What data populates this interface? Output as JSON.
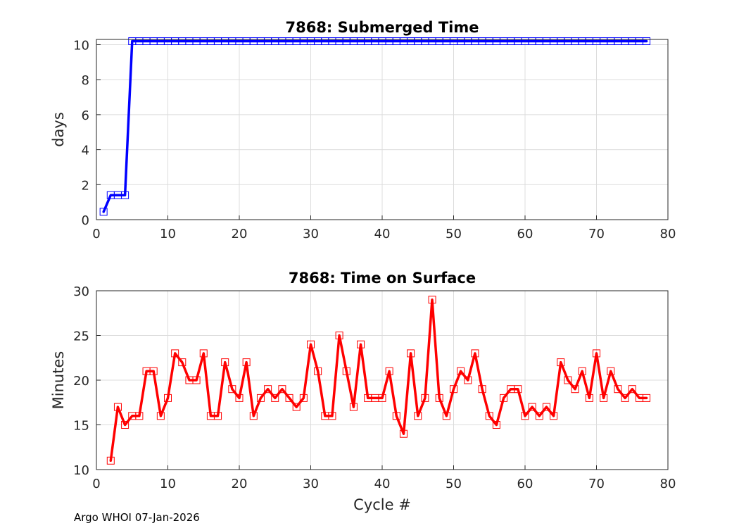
{
  "footer": "Argo WHOI 07-Jan-2026",
  "chart_data": [
    {
      "type": "line",
      "title": "7868: Submerged Time",
      "xlabel": "",
      "ylabel": "days",
      "xlim": [
        0,
        80
      ],
      "ylim": [
        0,
        10.3
      ],
      "xticks": [
        0,
        10,
        20,
        30,
        40,
        50,
        60,
        70,
        80
      ],
      "yticks": [
        0,
        2,
        4,
        6,
        8,
        10
      ],
      "grid": true,
      "color": "#0000ff",
      "marker": "square",
      "x": [
        1,
        2,
        3,
        4,
        5,
        6,
        7,
        8,
        9,
        10,
        11,
        12,
        13,
        14,
        15,
        16,
        17,
        18,
        19,
        20,
        21,
        22,
        23,
        24,
        25,
        26,
        27,
        28,
        29,
        30,
        31,
        32,
        33,
        34,
        35,
        36,
        37,
        38,
        39,
        40,
        41,
        42,
        43,
        44,
        45,
        46,
        47,
        48,
        49,
        50,
        51,
        52,
        53,
        54,
        55,
        56,
        57,
        58,
        59,
        60,
        61,
        62,
        63,
        64,
        65,
        66,
        67,
        68,
        69,
        70,
        71,
        72,
        73,
        74,
        75,
        76,
        77
      ],
      "y": [
        0.45,
        1.4,
        1.4,
        1.4,
        10.2,
        10.2,
        10.2,
        10.2,
        10.2,
        10.2,
        10.2,
        10.2,
        10.2,
        10.2,
        10.2,
        10.2,
        10.2,
        10.2,
        10.2,
        10.2,
        10.2,
        10.2,
        10.2,
        10.2,
        10.2,
        10.2,
        10.2,
        10.2,
        10.2,
        10.2,
        10.2,
        10.2,
        10.2,
        10.2,
        10.2,
        10.2,
        10.2,
        10.2,
        10.2,
        10.2,
        10.2,
        10.2,
        10.2,
        10.2,
        10.2,
        10.2,
        10.2,
        10.2,
        10.2,
        10.2,
        10.2,
        10.2,
        10.2,
        10.2,
        10.2,
        10.2,
        10.2,
        10.2,
        10.2,
        10.2,
        10.2,
        10.2,
        10.2,
        10.2,
        10.2,
        10.2,
        10.2,
        10.2,
        10.2,
        10.2,
        10.2,
        10.2,
        10.2,
        10.2,
        10.2,
        10.2,
        10.2
      ]
    },
    {
      "type": "line",
      "title": "7868: Time on Surface",
      "xlabel": "Cycle #",
      "ylabel": "Minutes",
      "xlim": [
        0,
        80
      ],
      "ylim": [
        10,
        30
      ],
      "xticks": [
        0,
        10,
        20,
        30,
        40,
        50,
        60,
        70,
        80
      ],
      "yticks": [
        10,
        15,
        20,
        25,
        30
      ],
      "grid": true,
      "color": "#ff0000",
      "marker": "square",
      "x": [
        2,
        3,
        4,
        5,
        6,
        7,
        8,
        9,
        10,
        11,
        12,
        13,
        14,
        15,
        16,
        17,
        18,
        19,
        20,
        21,
        22,
        23,
        24,
        25,
        26,
        27,
        28,
        29,
        30,
        31,
        32,
        33,
        34,
        35,
        36,
        37,
        38,
        39,
        40,
        41,
        42,
        43,
        44,
        45,
        46,
        47,
        48,
        49,
        50,
        51,
        52,
        53,
        54,
        55,
        56,
        57,
        58,
        59,
        60,
        61,
        62,
        63,
        64,
        65,
        66,
        67,
        68,
        69,
        70,
        71,
        72,
        73,
        74,
        75,
        76,
        77
      ],
      "y": [
        11,
        17,
        15,
        16,
        16,
        21,
        21,
        16,
        18,
        23,
        22,
        20,
        20,
        23,
        16,
        16,
        22,
        19,
        18,
        22,
        16,
        18,
        19,
        18,
        19,
        18,
        17,
        18,
        24,
        21,
        16,
        16,
        25,
        21,
        17,
        24,
        18,
        18,
        18,
        21,
        16,
        14,
        23,
        16,
        18,
        29,
        18,
        16,
        19,
        21,
        20,
        23,
        19,
        16,
        15,
        18,
        19,
        19,
        16,
        17,
        16,
        17,
        16,
        22,
        20,
        19,
        21,
        18,
        23,
        18,
        21,
        19,
        18,
        19,
        18,
        18
      ]
    }
  ]
}
